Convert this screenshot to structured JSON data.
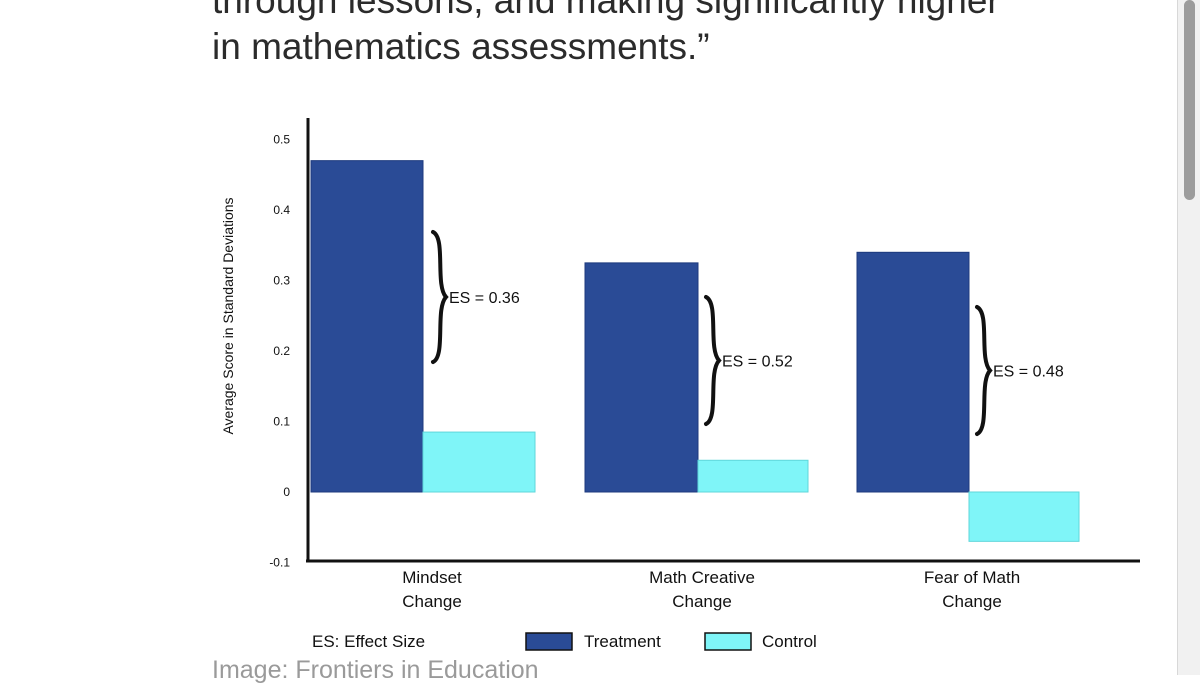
{
  "article": {
    "quote_line_1": "through lessons, and making significantly higher",
    "quote_line_2": "in mathematics assessments.”",
    "caption": "Image: Frontiers in Education"
  },
  "chart_data": {
    "type": "bar",
    "title": "",
    "xlabel": "",
    "ylabel": "Average Score in Standard Deviations",
    "ylim": [
      -0.1,
      0.5
    ],
    "yticks": [
      -0.1,
      0,
      0.1,
      0.2,
      0.3,
      0.4,
      0.5
    ],
    "ytick_labels": [
      "-0.1",
      "0",
      "0.1",
      "0.2",
      "0.3",
      "0.4",
      "0.5"
    ],
    "categories": [
      [
        "Mindset",
        "Change"
      ],
      [
        "Math Creative",
        "Change"
      ],
      [
        "Fear of Math",
        "Change"
      ]
    ],
    "series": [
      {
        "name": "Treatment",
        "values": [
          0.47,
          0.325,
          0.34
        ],
        "color": "#2a4b96"
      },
      {
        "name": "Control",
        "values": [
          0.085,
          0.045,
          -0.07
        ],
        "color": "#7ff5f8"
      }
    ],
    "annotations": [
      "ES = 0.36",
      "ES = 0.52",
      "ES = 0.48"
    ],
    "footnote": "ES: Effect Size",
    "legend_position": "bottom",
    "grid": false
  }
}
